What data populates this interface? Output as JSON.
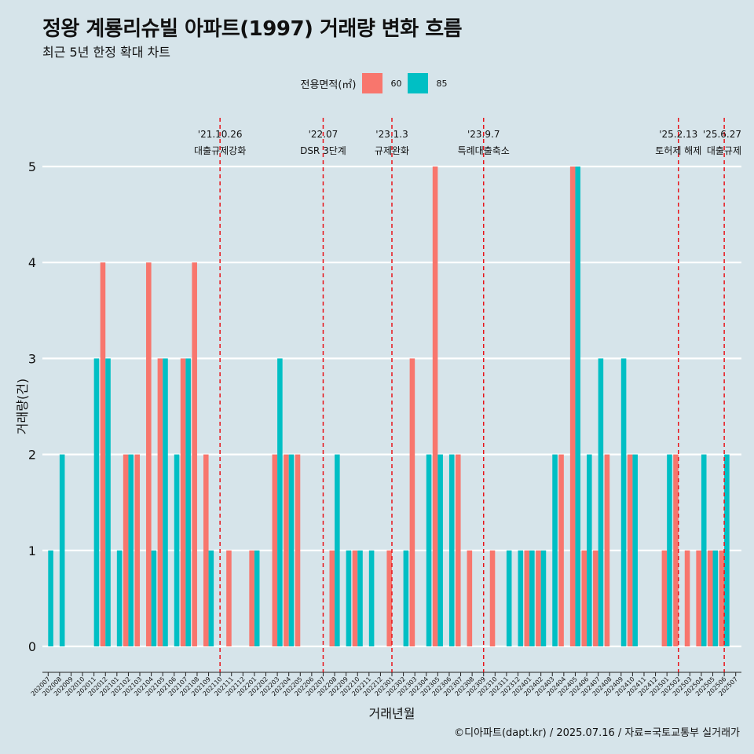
{
  "header": {
    "title": "정왕 계룡리슈빌 아파트(1997) 거래량 변화 흐름",
    "subtitle": "최근 5년 한정 확대 차트"
  },
  "legend": {
    "title": "전용면적(㎡)",
    "items": [
      {
        "label": "60",
        "color": "#f8766d"
      },
      {
        "label": "85",
        "color": "#00bfc4"
      }
    ]
  },
  "footer": {
    "credit": "©디아파트(dapt.kr) / 2025.07.16 / 자료=국토교통부 실거래가"
  },
  "chart_data": {
    "type": "bar",
    "xlabel": "거래년월",
    "ylabel": "거래량(건)",
    "ylim": [
      0,
      5
    ],
    "yticks": [
      0,
      1,
      2,
      3,
      4,
      5
    ],
    "categories": [
      "202007",
      "202008",
      "202009",
      "202010",
      "202011",
      "202012",
      "202101",
      "202102",
      "202103",
      "202104",
      "202105",
      "202106",
      "202107",
      "202108",
      "202109",
      "202110",
      "202111",
      "202112",
      "202201",
      "202202",
      "202203",
      "202204",
      "202205",
      "202206",
      "202207",
      "202208",
      "202209",
      "202210",
      "202211",
      "202212",
      "202301",
      "202302",
      "202303",
      "202304",
      "202305",
      "202306",
      "202307",
      "202308",
      "202309",
      "202310",
      "202311",
      "202312",
      "202401",
      "202402",
      "202403",
      "202404",
      "202405",
      "202406",
      "202407",
      "202408",
      "202409",
      "202410",
      "202411",
      "202412",
      "202501",
      "202502",
      "202503",
      "202504",
      "202505",
      "202506",
      "202507"
    ],
    "series": [
      {
        "name": "60",
        "color": "#f8766d",
        "values": [
          0,
          0,
          0,
          0,
          0,
          4,
          0,
          2,
          2,
          4,
          3,
          0,
          3,
          4,
          2,
          0,
          1,
          0,
          1,
          0,
          2,
          2,
          2,
          0,
          0,
          1,
          0,
          1,
          0,
          0,
          1,
          0,
          3,
          0,
          5,
          0,
          2,
          1,
          0,
          1,
          0,
          0,
          1,
          1,
          0,
          2,
          5,
          1,
          1,
          2,
          0,
          2,
          0,
          0,
          1,
          2,
          1,
          1,
          1,
          1,
          0
        ]
      },
      {
        "name": "85",
        "color": "#00bfc4",
        "values": [
          1,
          2,
          0,
          0,
          3,
          3,
          1,
          2,
          0,
          1,
          3,
          2,
          3,
          0,
          1,
          0,
          0,
          0,
          1,
          0,
          3,
          2,
          0,
          0,
          0,
          2,
          1,
          1,
          1,
          0,
          0,
          1,
          0,
          2,
          2,
          2,
          0,
          0,
          0,
          0,
          1,
          1,
          1,
          1,
          2,
          0,
          5,
          2,
          3,
          0,
          3,
          2,
          0,
          0,
          2,
          0,
          0,
          2,
          1,
          2,
          0
        ]
      }
    ],
    "annotations": [
      {
        "date": "'21.10.26",
        "label": "대출규제강화",
        "at": "202110"
      },
      {
        "date": "'22.07",
        "label": "DSR 3단계",
        "at": "202207"
      },
      {
        "date": "'23.1.3",
        "label": "규제완화",
        "at": "202301"
      },
      {
        "date": "'23.9.7",
        "label": "특례대출축소",
        "at": "202309"
      },
      {
        "date": "'25.2.13",
        "label": "토허제 해제",
        "at": "202502"
      },
      {
        "date": "'25.6.27",
        "label": "대출규제",
        "at": "202506"
      }
    ]
  }
}
